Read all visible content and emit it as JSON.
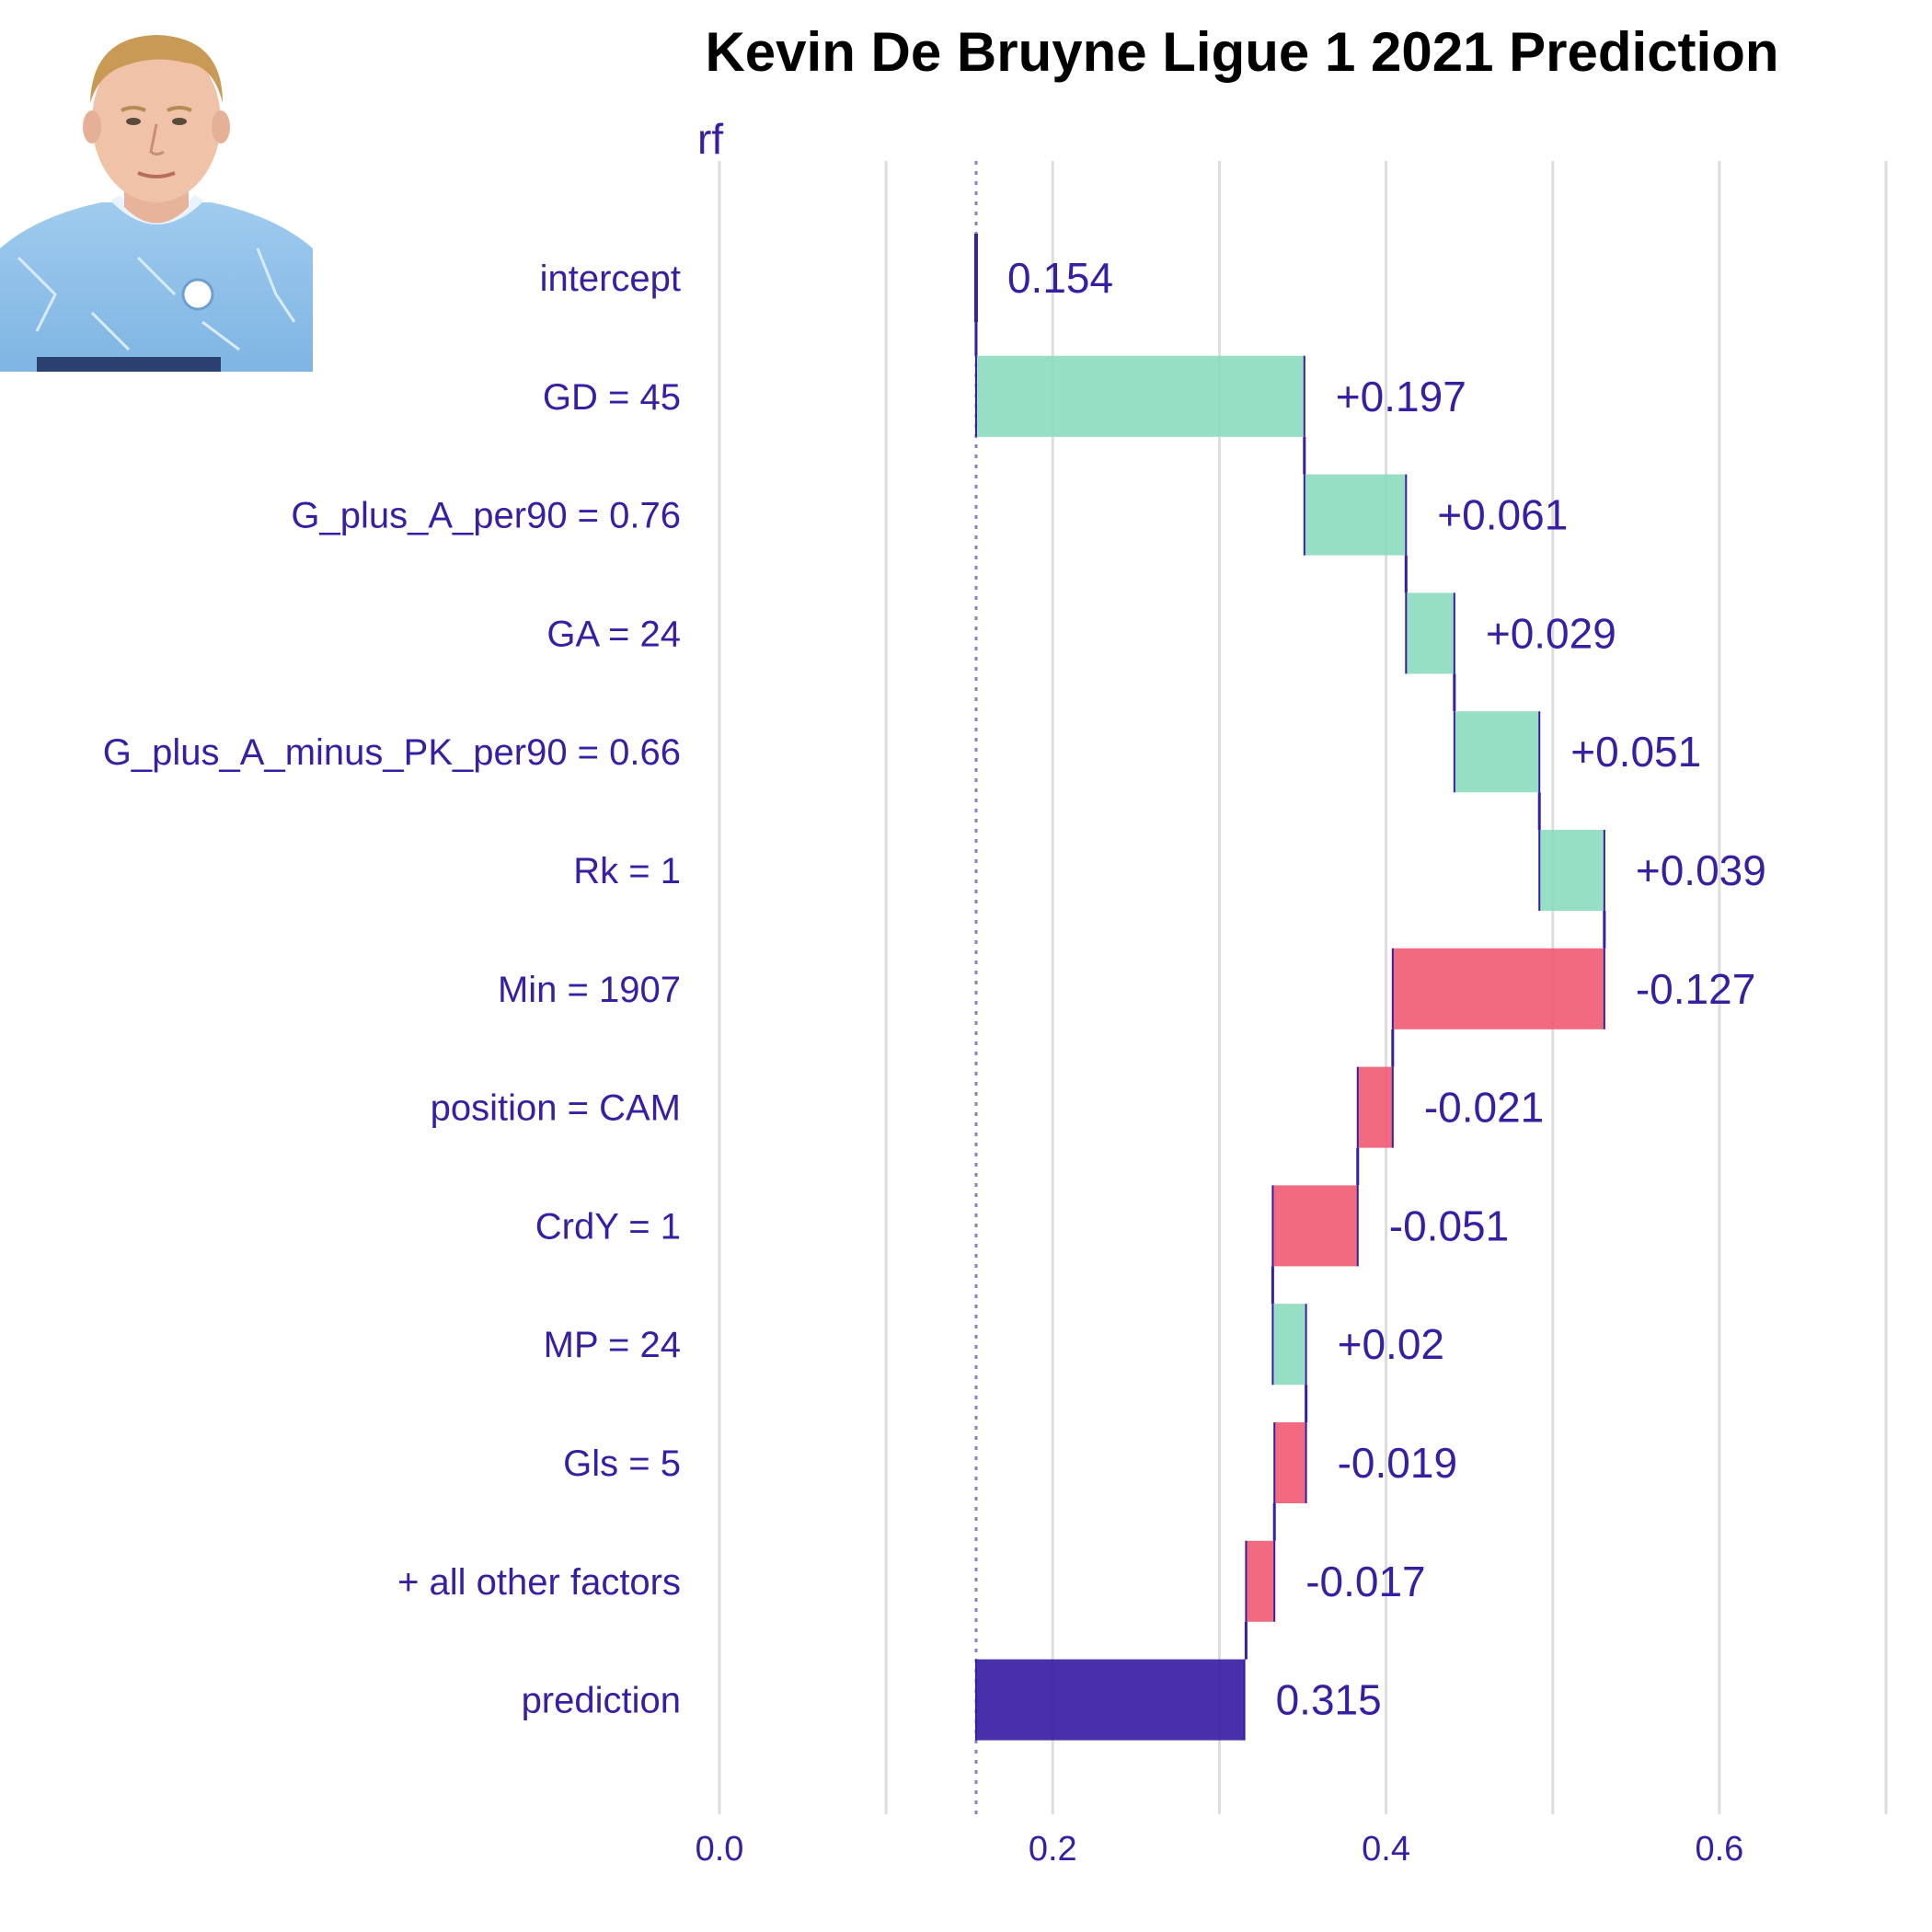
{
  "colors": {
    "positive": "#8bdcbe",
    "negative": "#f05a71",
    "prediction": "#371ea3",
    "text": "#371ea3",
    "grid": "#dddddd"
  },
  "photo": {
    "icon": "player-portrait-icon"
  },
  "chart_data": {
    "type": "waterfall",
    "title": "Kevin De Bruyne Ligue 1 2021 Prediction",
    "subtitle": "rf",
    "xlim": [
      0,
      0.7
    ],
    "x_ticks": [
      0.0,
      0.2,
      0.4,
      0.6
    ],
    "x_tick_labels": [
      "0.0",
      "0.2",
      "0.4",
      "0.6"
    ],
    "baseline": 0.154,
    "grid": true,
    "bars": [
      {
        "label": "intercept",
        "value": 0.154,
        "kind": "intercept",
        "text": "0.154"
      },
      {
        "label": "GD = 45",
        "value": 0.197,
        "kind": "contribution",
        "text": "+0.197"
      },
      {
        "label": "G_plus_A_per90 = 0.76",
        "value": 0.061,
        "kind": "contribution",
        "text": "+0.061"
      },
      {
        "label": "GA = 24",
        "value": 0.029,
        "kind": "contribution",
        "text": "+0.029"
      },
      {
        "label": "G_plus_A_minus_PK_per90 = 0.66",
        "value": 0.051,
        "kind": "contribution",
        "text": "+0.051"
      },
      {
        "label": "Rk = 1",
        "value": 0.039,
        "kind": "contribution",
        "text": "+0.039"
      },
      {
        "label": "Min = 1907",
        "value": -0.127,
        "kind": "contribution",
        "text": "-0.127"
      },
      {
        "label": "position = CAM",
        "value": -0.021,
        "kind": "contribution",
        "text": "-0.021"
      },
      {
        "label": "CrdY = 1",
        "value": -0.051,
        "kind": "contribution",
        "text": "-0.051"
      },
      {
        "label": "MP = 24",
        "value": 0.02,
        "kind": "contribution",
        "text": "+0.02"
      },
      {
        "label": "Gls = 5",
        "value": -0.019,
        "kind": "contribution",
        "text": "-0.019"
      },
      {
        "label": "+ all other factors",
        "value": -0.017,
        "kind": "contribution",
        "text": "-0.017"
      },
      {
        "label": "prediction",
        "value": 0.315,
        "kind": "prediction",
        "text": "0.315"
      }
    ]
  }
}
